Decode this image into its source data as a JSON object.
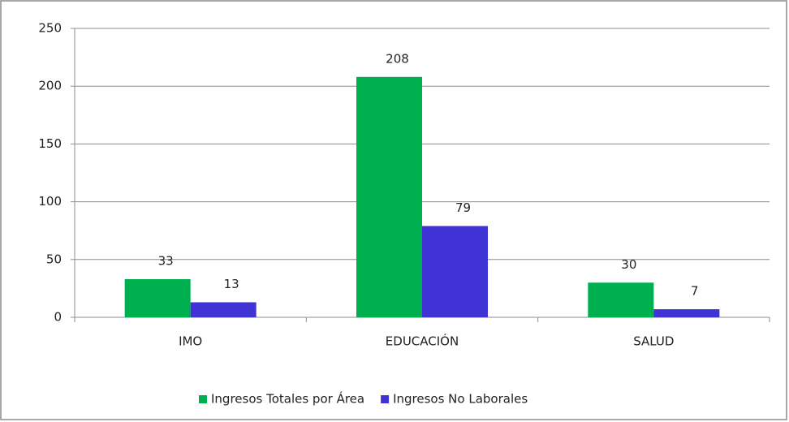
{
  "chart_data": {
    "type": "bar",
    "categories": [
      "IMO",
      "EDUCACIÓN",
      "SALUD"
    ],
    "series": [
      {
        "name": "Ingresos Totales por Área",
        "color": "#00b050",
        "values": [
          33,
          208,
          30
        ]
      },
      {
        "name": "Ingresos No Laborales",
        "color": "#3f33d6",
        "values": [
          13,
          79,
          7
        ]
      }
    ],
    "ylim": [
      0,
      250
    ],
    "yticks": [
      0,
      50,
      100,
      150,
      200,
      250
    ],
    "grid": true,
    "legend": "bottom"
  }
}
